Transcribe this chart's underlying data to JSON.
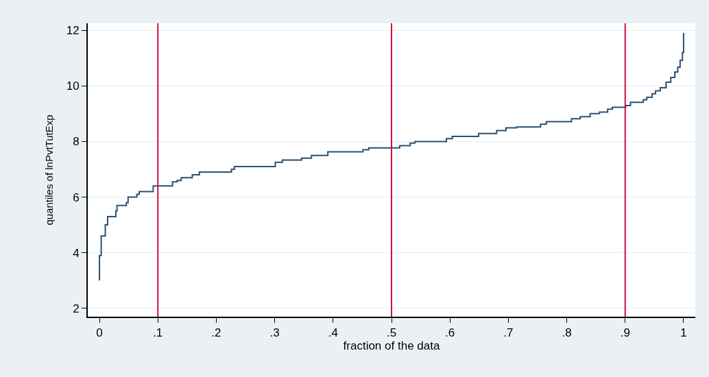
{
  "chart_data": {
    "type": "step",
    "xlabel": "fraction of the data",
    "ylabel": "quantiles of lnPvtTutExp",
    "x": [
      0,
      0,
      0.003,
      0.01,
      0.014,
      0.028,
      0.03,
      0.046,
      0.049,
      0.064,
      0.068,
      0.092,
      0.125,
      0.133,
      0.14,
      0.159,
      0.171,
      0.226,
      0.231,
      0.301,
      0.313,
      0.346,
      0.363,
      0.391,
      0.451,
      0.461,
      0.514,
      0.532,
      0.54,
      0.594,
      0.604,
      0.649,
      0.68,
      0.696,
      0.714,
      0.755,
      0.765,
      0.808,
      0.823,
      0.84,
      0.856,
      0.87,
      0.878,
      0.901,
      0.909,
      0.931,
      0.937,
      0.946,
      0.952,
      0.96,
      0.97,
      0.978,
      0.985,
      0.99,
      0.994,
      0.998,
      1.0
    ],
    "series": [
      {
        "color": "#2b4f72",
        "values": [
          3.0,
          3.9,
          4.6,
          5.0,
          5.3,
          5.5,
          5.7,
          5.8,
          6.0,
          6.1,
          6.2,
          6.4,
          6.55,
          6.6,
          6.7,
          6.8,
          6.9,
          7.0,
          7.1,
          7.25,
          7.33,
          7.4,
          7.5,
          7.63,
          7.7,
          7.77,
          7.85,
          7.94,
          8.0,
          8.1,
          8.18,
          8.29,
          8.39,
          8.49,
          8.52,
          8.62,
          8.71,
          8.82,
          8.89,
          9.0,
          9.06,
          9.16,
          9.23,
          9.29,
          9.41,
          9.5,
          9.59,
          9.72,
          9.82,
          9.93,
          10.13,
          10.3,
          10.5,
          10.67,
          10.92,
          11.2,
          11.9
        ]
      }
    ],
    "xlim": [
      -0.02,
      1.02
    ],
    "ylim": [
      1.7,
      12.25
    ],
    "xticks": [
      0,
      {
        "value": 0.1,
        "label": ".1"
      },
      {
        "value": 0.2,
        "label": ".2"
      },
      {
        "value": 0.3,
        "label": ".3"
      },
      {
        "value": 0.4,
        "label": ".4"
      },
      {
        "value": 0.5,
        "label": ".5"
      },
      {
        "value": 0.6,
        "label": ".6"
      },
      {
        "value": 0.7,
        "label": ".7"
      },
      {
        "value": 0.8,
        "label": ".8"
      },
      {
        "value": 0.9,
        "label": ".9"
      },
      1
    ],
    "yticks": [
      2,
      4,
      6,
      8,
      10,
      12
    ],
    "ref_lines": [
      {
        "axis": "x",
        "value": 0.1,
        "color": "#d0103a"
      },
      {
        "axis": "x",
        "value": 0.5,
        "color": "#d0103a"
      },
      {
        "axis": "x",
        "value": 0.9,
        "color": "#d0103a"
      }
    ],
    "grid": "y"
  }
}
